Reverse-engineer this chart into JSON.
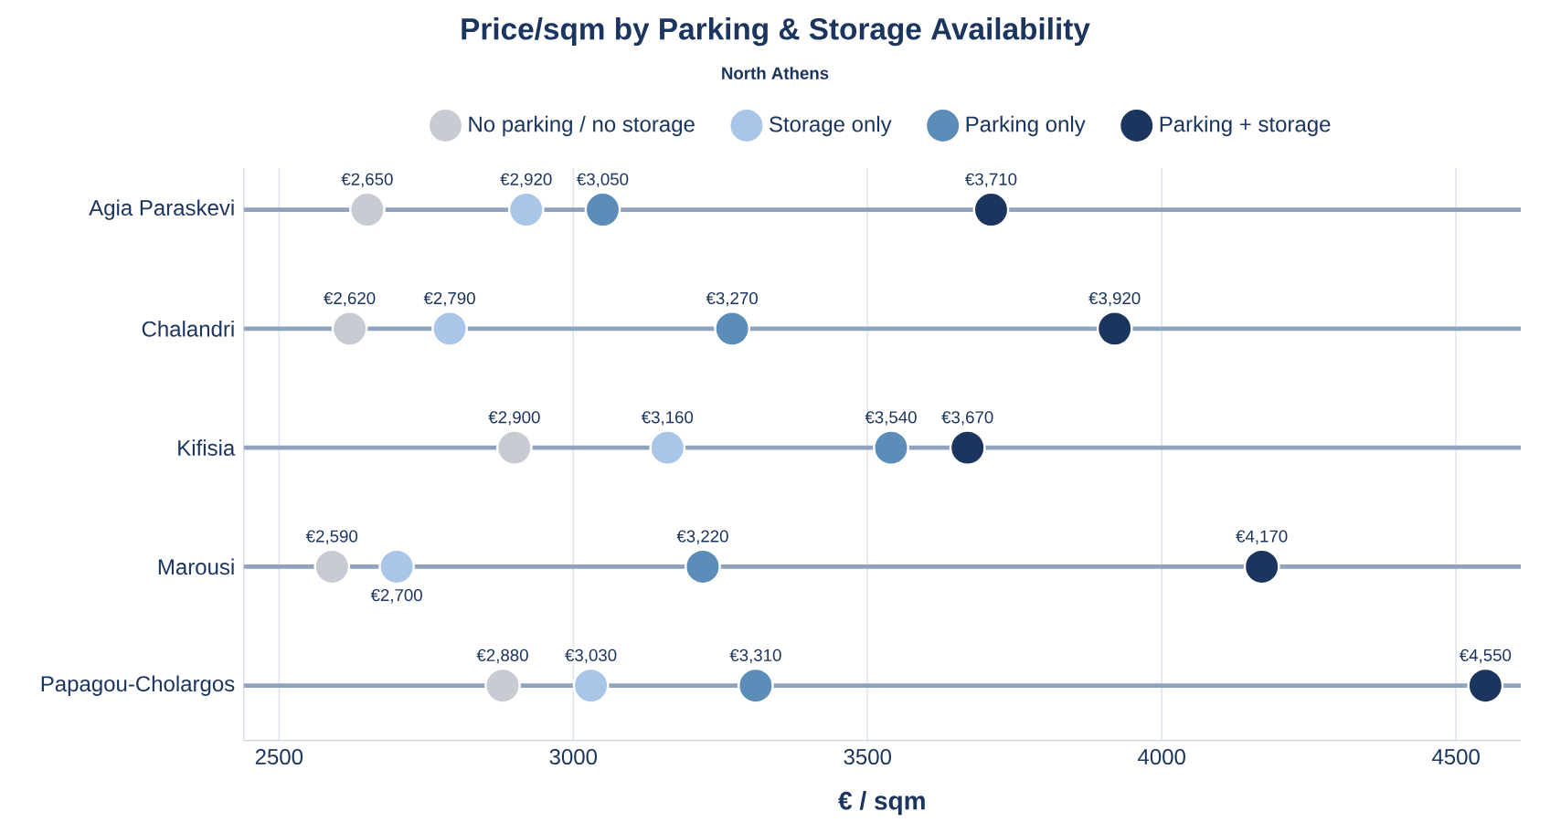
{
  "chart_data": {
    "type": "scatter",
    "title": "Price/sqm by Parking & Storage Availability",
    "subtitle": "North Athens",
    "xlabel": "€ / sqm",
    "orientation": "horizontal",
    "categories": [
      "Agia Paraskevi",
      "Chalandri",
      "Kifisia",
      "Marousi",
      "Papagou-Cholargos"
    ],
    "series": [
      {
        "name": "No parking / no storage",
        "color": "#c8cbd2",
        "values": [
          2650,
          2620,
          2900,
          2590,
          2880
        ],
        "value_labels": [
          "€2,650",
          "€2,620",
          "€2,900",
          "€2,590",
          "€2,880"
        ]
      },
      {
        "name": "Storage only",
        "color": "#a9c6e8",
        "values": [
          2920,
          2790,
          3160,
          2700,
          3030
        ],
        "value_labels": [
          "€2,920",
          "€2,790",
          "€3,160",
          "€2,700",
          "€3,030"
        ]
      },
      {
        "name": "Parking only",
        "color": "#5b8db8",
        "values": [
          3050,
          3270,
          3540,
          3220,
          3310
        ],
        "value_labels": [
          "€3,050",
          "€3,270",
          "€3,540",
          "€3,220",
          "€3,310"
        ]
      },
      {
        "name": "Parking + storage",
        "color": "#1c355e",
        "values": [
          3710,
          3920,
          3670,
          4170,
          4550
        ],
        "value_labels": [
          "€3,710",
          "€3,920",
          "€3,670",
          "€4,170",
          "€4,550"
        ]
      }
    ],
    "xlim": [
      2440,
      4610
    ],
    "xticks": [
      2500,
      3000,
      3500,
      4000,
      4500
    ],
    "grid": true,
    "legend": "top",
    "marker": "circle"
  }
}
